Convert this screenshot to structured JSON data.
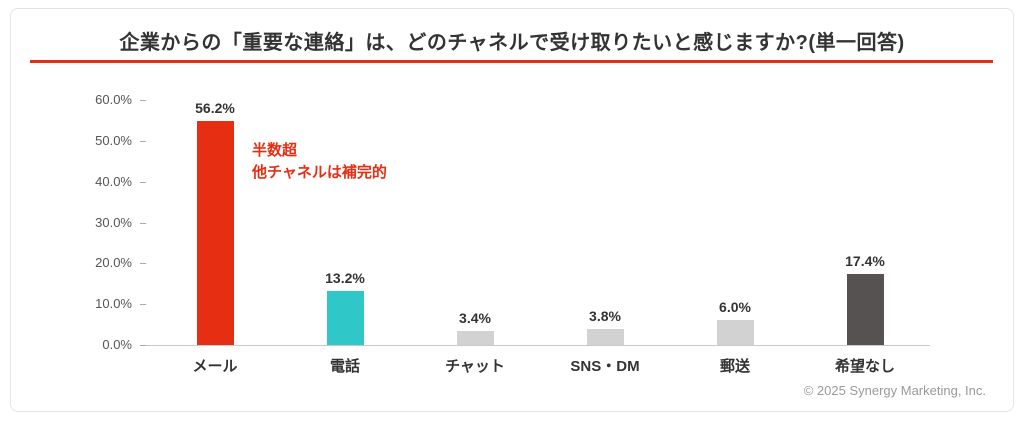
{
  "title": "企業からの「重要な連絡」は、どのチャネルで受け取りたいと感じますか?(単一回答)",
  "footer": {
    "copyright": "© 2025 Synergy Marketing, Inc."
  },
  "colors": {
    "accent_red": "#e62e12",
    "teal": "#2fc7c7",
    "light_gray": "#d2d2d2",
    "dark_gray": "#575252",
    "text_dark": "#333333"
  },
  "chart_data": {
    "type": "bar",
    "title": "企業からの「重要な連絡」は、どのチャネルで受け取りたいと感じますか?(単一回答)",
    "categories": [
      "メール",
      "電話",
      "チャット",
      "SNS・DM",
      "郵送",
      "希望なし"
    ],
    "values": [
      56.2,
      13.2,
      3.4,
      3.8,
      6.0,
      17.4
    ],
    "value_labels": [
      "56.2%",
      "13.2%",
      "3.4%",
      "3.8%",
      "6.0%",
      "17.4%"
    ],
    "bar_colors": [
      "#e62e12",
      "#2fc7c7",
      "#d2d2d2",
      "#d2d2d2",
      "#d2d2d2",
      "#575252"
    ],
    "xlabel": "",
    "ylabel": "",
    "ylim": [
      0,
      60
    ],
    "yticks": [
      "60.0%",
      "50.0%",
      "40.0%",
      "30.0%",
      "20.0%",
      "10.0%",
      "0.0%"
    ],
    "grid": false,
    "legend": false,
    "annotation_lines": [
      "半数超",
      "他チャネルは補完的"
    ]
  }
}
